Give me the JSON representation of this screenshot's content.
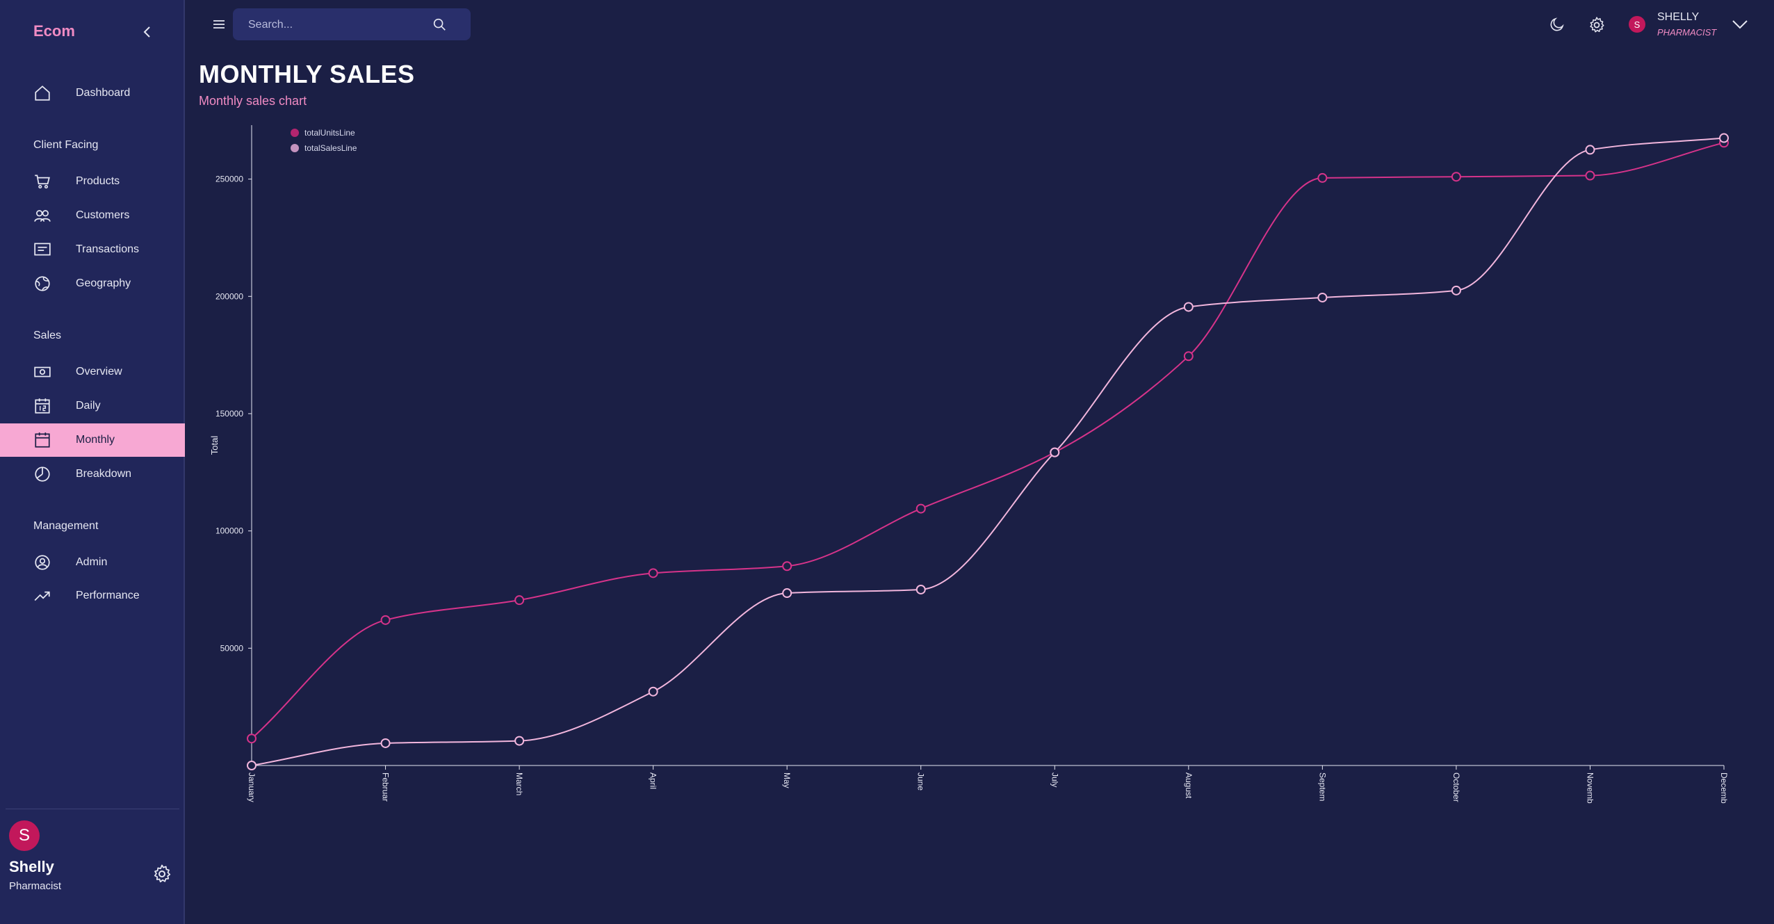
{
  "app": {
    "brand": "Ecom"
  },
  "sidebar": {
    "items": [
      {
        "label": "Dashboard",
        "icon": "home-icon"
      },
      {
        "section": "Client Facing"
      },
      {
        "label": "Products",
        "icon": "cart-icon"
      },
      {
        "label": "Customers",
        "icon": "users-icon"
      },
      {
        "label": "Transactions",
        "icon": "receipt-icon"
      },
      {
        "label": "Geography",
        "icon": "globe-icon"
      },
      {
        "section": "Sales"
      },
      {
        "label": "Overview",
        "icon": "cash-icon"
      },
      {
        "label": "Daily",
        "icon": "calendar-day-icon"
      },
      {
        "label": "Monthly",
        "icon": "calendar-month-icon",
        "active": true
      },
      {
        "label": "Breakdown",
        "icon": "pie-chart-icon"
      },
      {
        "section": "Management"
      },
      {
        "label": "Admin",
        "icon": "admin-icon"
      },
      {
        "label": "Performance",
        "icon": "trending-up-icon"
      }
    ],
    "user": {
      "initial": "S",
      "name": "Shelly",
      "role": "Pharmacist"
    }
  },
  "topbar": {
    "search_placeholder": "Search...",
    "user": {
      "initial": "S",
      "name": "SHELLY",
      "role": "PHARMACIST"
    }
  },
  "header": {
    "title": "MONTHLY SALES",
    "subtitle": "Monthly sales chart"
  },
  "colors": {
    "accent": "#f08bc3",
    "units_line": "#d6338a",
    "sales_line": "#f2b6dd",
    "background": "#1b1f45",
    "sidebar": "#21265a"
  },
  "chart_data": {
    "type": "line",
    "categories": [
      "January",
      "February",
      "March",
      "April",
      "May",
      "June",
      "July",
      "August",
      "September",
      "October",
      "November",
      "December"
    ],
    "tick_labels": [
      "January",
      "Februar",
      "March",
      "April",
      "May",
      "June",
      "July",
      "August",
      "Septem",
      "October",
      "Novemb",
      "Decemb"
    ],
    "ylabel": "Total",
    "yticks": [
      50000,
      100000,
      150000,
      200000,
      250000
    ],
    "ylim": [
      0,
      273000
    ],
    "legend_position": "top-left",
    "series": [
      {
        "name": "totalUnitsLine",
        "color": "#d6338a",
        "values": [
          11500,
          62000,
          70500,
          82000,
          85000,
          109500,
          133500,
          174500,
          250500,
          251000,
          251500,
          265500
        ]
      },
      {
        "name": "totalSalesLine",
        "color": "#f2b6dd",
        "values": [
          0,
          9500,
          10500,
          31500,
          73500,
          75000,
          133500,
          195500,
          199500,
          202500,
          262500,
          267500
        ]
      }
    ]
  }
}
